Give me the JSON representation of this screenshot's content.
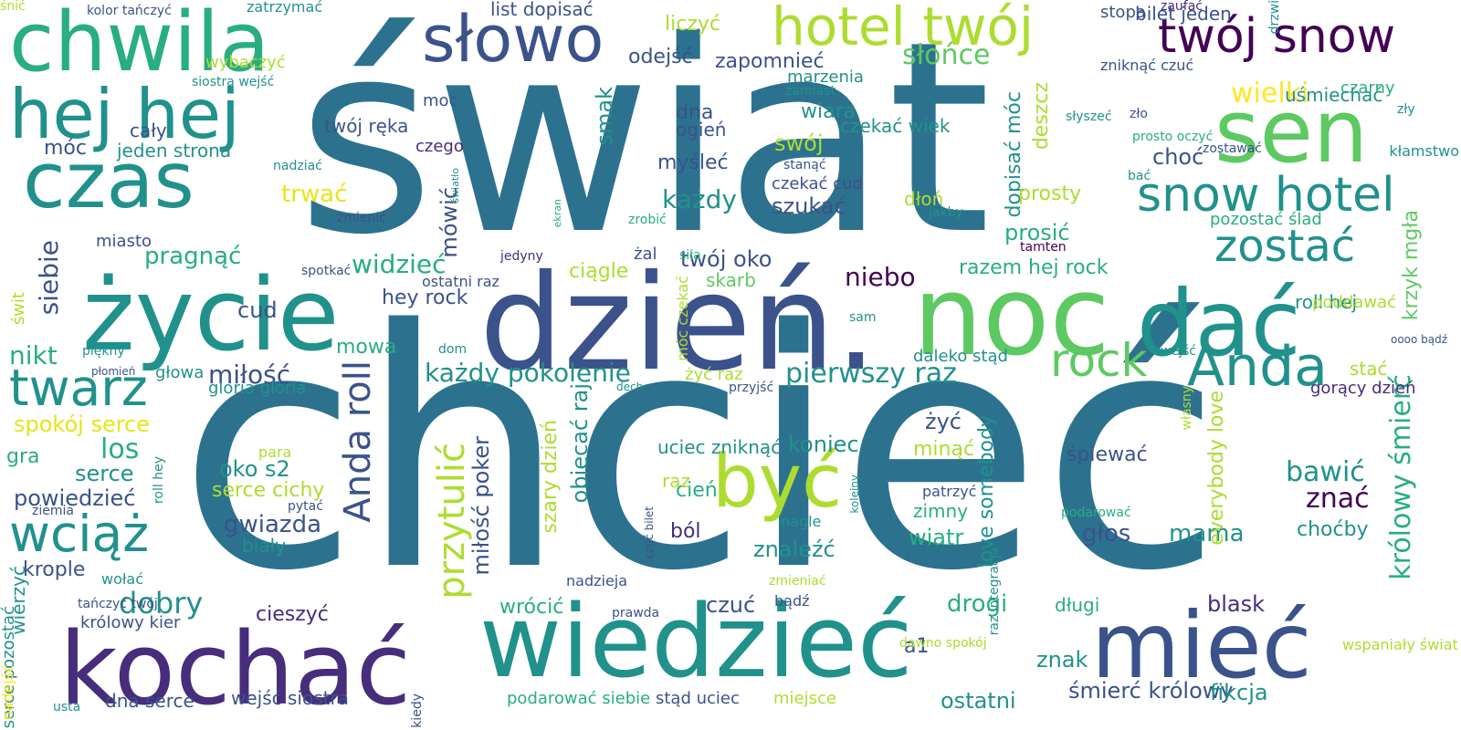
{
  "palette": {
    "deep_purple": "#440154",
    "purple": "#472d7b",
    "indigo": "#3b528b",
    "blue": "#2c728e",
    "teal": "#21918c",
    "sea_green": "#28ae80",
    "green": "#5ec962",
    "lime": "#addc30",
    "yellow": "#fde725",
    "gold": "#e8e419"
  },
  "words": [
    {
      "text": "świat",
      "color": "blue",
      "vertical": false
    },
    {
      "text": "chcieć",
      "color": "blue",
      "vertical": false
    },
    {
      "text": "dzień.",
      "color": "indigo",
      "vertical": false
    },
    {
      "text": "noc",
      "color": "green",
      "vertical": false
    },
    {
      "text": "dać",
      "color": "teal",
      "vertical": false
    },
    {
      "text": "Anda",
      "color": "teal",
      "vertical": false
    },
    {
      "text": "życie",
      "color": "teal",
      "vertical": false
    },
    {
      "text": "kochać",
      "color": "purple",
      "vertical": false
    },
    {
      "text": "wiedzieć",
      "color": "teal",
      "vertical": false
    },
    {
      "text": "mieć",
      "color": "indigo",
      "vertical": false
    },
    {
      "text": "chwila",
      "color": "sea_green",
      "vertical": false
    },
    {
      "text": "czas",
      "color": "teal",
      "vertical": false
    },
    {
      "text": "hej hej",
      "color": "teal",
      "vertical": false
    },
    {
      "text": "sen",
      "color": "green",
      "vertical": false
    },
    {
      "text": "słowo",
      "color": "indigo",
      "vertical": false
    },
    {
      "text": "hotel twój",
      "color": "lime",
      "vertical": false
    },
    {
      "text": "twój snow",
      "color": "deep_purple",
      "vertical": false
    },
    {
      "text": "snow hotel",
      "color": "teal",
      "vertical": false
    },
    {
      "text": "być",
      "color": "lime",
      "vertical": false
    },
    {
      "text": "rock",
      "color": "green",
      "vertical": false
    },
    {
      "text": "twarz",
      "color": "teal",
      "vertical": false
    },
    {
      "text": "wciąż",
      "color": "teal",
      "vertical": false
    },
    {
      "text": "zostać",
      "color": "teal",
      "vertical": false
    },
    {
      "text": "Anda roll",
      "color": "indigo",
      "vertical": true
    },
    {
      "text": "przytulić",
      "color": "lime",
      "vertical": true
    },
    {
      "text": "dobry",
      "color": "teal",
      "vertical": false
    },
    {
      "text": "siebie",
      "color": "indigo",
      "vertical": true
    },
    {
      "text": "wielki",
      "color": "yellow",
      "vertical": false
    },
    {
      "text": "słońce",
      "color": "green",
      "vertical": false
    },
    {
      "text": "pierwszy raz",
      "color": "teal",
      "vertical": false
    },
    {
      "text": "każdy pokolenie",
      "color": "teal",
      "vertical": false
    },
    {
      "text": "niebo",
      "color": "deep_purple",
      "vertical": false
    },
    {
      "text": "każdy",
      "color": "teal",
      "vertical": false
    },
    {
      "text": "widzieć",
      "color": "sea_green",
      "vertical": false
    },
    {
      "text": "gwiazda",
      "color": "indigo",
      "vertical": false
    },
    {
      "text": "los",
      "color": "sea_green",
      "vertical": false
    },
    {
      "text": "miłość",
      "color": "indigo",
      "vertical": false
    },
    {
      "text": "bawić",
      "color": "teal",
      "vertical": false
    },
    {
      "text": "znać",
      "color": "deep_purple",
      "vertical": false
    },
    {
      "text": "mama",
      "color": "teal",
      "vertical": false
    },
    {
      "text": "głos",
      "color": "indigo",
      "vertical": false
    },
    {
      "text": "czuć",
      "color": "indigo",
      "vertical": false
    },
    {
      "text": "drogi",
      "color": "sea_green",
      "vertical": false
    },
    {
      "text": "ostatni",
      "color": "teal",
      "vertical": false
    },
    {
      "text": "śmierć królowy",
      "color": "indigo",
      "vertical": false
    },
    {
      "text": "fikcja",
      "color": "teal",
      "vertical": false
    },
    {
      "text": "blask",
      "color": "purple",
      "vertical": false
    },
    {
      "text": "znak",
      "color": "teal",
      "vertical": false
    },
    {
      "text": "królowy śmierć",
      "color": "sea_green",
      "vertical": true
    },
    {
      "text": "krzyk mgła",
      "color": "green",
      "vertical": true
    },
    {
      "text": "everybody love",
      "color": "lime",
      "vertical": true
    },
    {
      "text": "love somebody",
      "color": "teal",
      "vertical": true
    },
    {
      "text": "miłość poker",
      "color": "indigo",
      "vertical": true
    },
    {
      "text": "obiecać raj",
      "color": "teal",
      "vertical": true
    },
    {
      "text": "szary dzień",
      "color": "lime",
      "vertical": true
    },
    {
      "text": "mówić",
      "color": "indigo",
      "vertical": true
    },
    {
      "text": "smak",
      "color": "teal",
      "vertical": true
    },
    {
      "text": "deszcz",
      "color": "lime",
      "vertical": true
    },
    {
      "text": "dopisać móc",
      "color": "teal",
      "vertical": true
    },
    {
      "text": "nikt",
      "color": "sea_green",
      "vertical": false
    },
    {
      "text": "serce",
      "color": "teal",
      "vertical": false
    },
    {
      "text": "powiedzieć",
      "color": "indigo",
      "vertical": false
    },
    {
      "text": "oko s2",
      "color": "teal",
      "vertical": false
    },
    {
      "text": "serce cichy",
      "color": "lime",
      "vertical": false
    },
    {
      "text": "biały",
      "color": "teal",
      "vertical": false
    },
    {
      "text": "krople",
      "color": "indigo",
      "vertical": false
    },
    {
      "text": "cieszyć",
      "color": "purple",
      "vertical": false
    },
    {
      "text": "a1",
      "color": "indigo",
      "vertical": false
    },
    {
      "text": "znaleźć",
      "color": "teal",
      "vertical": false
    },
    {
      "text": "wiatr",
      "color": "sea_green",
      "vertical": false
    },
    {
      "text": "zimny",
      "color": "sea_green",
      "vertical": false
    },
    {
      "text": "minąć",
      "color": "lime",
      "vertical": false
    },
    {
      "text": "żyć",
      "color": "indigo",
      "vertical": false
    },
    {
      "text": "koniec",
      "color": "teal",
      "vertical": false
    },
    {
      "text": "uciec zniknąć",
      "color": "teal",
      "vertical": false
    },
    {
      "text": "cień",
      "color": "sea_green",
      "vertical": false
    },
    {
      "text": "ból",
      "color": "purple",
      "vertical": false
    },
    {
      "text": "raz",
      "color": "lime",
      "vertical": false
    },
    {
      "text": "twój oko",
      "color": "indigo",
      "vertical": false
    },
    {
      "text": "skarb",
      "color": "green",
      "vertical": false
    },
    {
      "text": "ciągle",
      "color": "lime",
      "vertical": false
    },
    {
      "text": "hey rock",
      "color": "indigo",
      "vertical": false
    },
    {
      "text": "cud",
      "color": "indigo",
      "vertical": false
    },
    {
      "text": "pragnąć",
      "color": "sea_green",
      "vertical": false
    },
    {
      "text": "trwać",
      "color": "gold",
      "vertical": false
    },
    {
      "text": "szukać",
      "color": "indigo",
      "vertical": false
    },
    {
      "text": "myśleć",
      "color": "indigo",
      "vertical": false
    },
    {
      "text": "swój",
      "color": "lime",
      "vertical": false
    },
    {
      "text": "wiara",
      "color": "teal",
      "vertical": false
    },
    {
      "text": "dna",
      "color": "indigo",
      "vertical": false
    },
    {
      "text": "ogień",
      "color": "indigo",
      "vertical": false
    },
    {
      "text": "czekać wiek",
      "color": "teal",
      "vertical": false
    },
    {
      "text": "czekać cud",
      "color": "indigo",
      "vertical": false
    },
    {
      "text": "dłoń",
      "color": "lime",
      "vertical": false
    },
    {
      "text": "prosty",
      "color": "lime",
      "vertical": false
    },
    {
      "text": "prosić",
      "color": "sea_green",
      "vertical": false
    },
    {
      "text": "razem hej rock",
      "color": "sea_green",
      "vertical": false
    },
    {
      "text": "daleko stąd",
      "color": "teal",
      "vertical": false
    },
    {
      "text": "choć",
      "color": "indigo",
      "vertical": false
    },
    {
      "text": "zapomnieć",
      "color": "indigo",
      "vertical": false
    },
    {
      "text": "odejść",
      "color": "indigo",
      "vertical": false
    },
    {
      "text": "liczyć",
      "color": "lime",
      "vertical": false
    },
    {
      "text": "list dopisać",
      "color": "indigo",
      "vertical": false
    },
    {
      "text": "stopa",
      "color": "indigo",
      "vertical": false
    },
    {
      "text": "bilet jeden",
      "color": "indigo",
      "vertical": false
    },
    {
      "text": "uśmiechać",
      "color": "teal",
      "vertical": false
    },
    {
      "text": "czarny",
      "color": "sea_green",
      "vertical": false
    },
    {
      "text": "zniknąć czuć",
      "color": "indigo",
      "vertical": false
    },
    {
      "text": "twój ręka",
      "color": "indigo",
      "vertical": false
    },
    {
      "text": "jeden strona",
      "color": "teal",
      "vertical": false
    },
    {
      "text": "móc",
      "color": "indigo",
      "vertical": false
    },
    {
      "text": "cały",
      "color": "indigo",
      "vertical": false
    },
    {
      "text": "moc",
      "color": "indigo",
      "vertical": false
    },
    {
      "text": "czego",
      "color": "purple",
      "vertical": false
    },
    {
      "text": "marzenia",
      "color": "teal",
      "vertical": false
    },
    {
      "text": "pozostać ślad",
      "color": "sea_green",
      "vertical": false
    },
    {
      "text": "roll hej",
      "color": "teal",
      "vertical": false
    },
    {
      "text": "stać",
      "color": "lime",
      "vertical": false
    },
    {
      "text": "gorący dzień",
      "color": "purple",
      "vertical": false
    },
    {
      "text": "choćby",
      "color": "teal",
      "vertical": false
    },
    {
      "text": "śpiewać",
      "color": "indigo",
      "vertical": false
    },
    {
      "text": "poddawać",
      "color": "lime",
      "vertical": false
    },
    {
      "text": "żyć raz",
      "color": "lime",
      "vertical": false
    },
    {
      "text": "wrócić",
      "color": "sea_green",
      "vertical": false
    },
    {
      "text": "długi",
      "color": "sea_green",
      "vertical": false
    },
    {
      "text": "miejsce",
      "color": "lime",
      "vertical": false
    },
    {
      "text": "stąd uciec",
      "color": "indigo",
      "vertical": false
    },
    {
      "text": "podarować siebie",
      "color": "sea_green",
      "vertical": false
    },
    {
      "text": "dna serce",
      "color": "indigo",
      "vertical": false
    },
    {
      "text": "wejść siostra",
      "color": "indigo",
      "vertical": false
    },
    {
      "text": "królowy kier",
      "color": "indigo",
      "vertical": false
    },
    {
      "text": "wierzyć",
      "color": "teal",
      "vertical": true
    },
    {
      "text": "mowa",
      "color": "sea_green",
      "vertical": false
    },
    {
      "text": "głowa",
      "color": "teal",
      "vertical": false
    },
    {
      "text": "spokój serce",
      "color": "gold",
      "vertical": false
    },
    {
      "text": "gra",
      "color": "sea_green",
      "vertical": false
    },
    {
      "text": "gloria gloria",
      "color": "teal",
      "vertical": false
    },
    {
      "text": "dom",
      "color": "teal",
      "vertical": false
    },
    {
      "text": "ostatni raz",
      "color": "indigo",
      "vertical": false
    },
    {
      "text": "jedyny",
      "color": "purple",
      "vertical": false
    },
    {
      "text": "spotkać",
      "color": "indigo",
      "vertical": false
    },
    {
      "text": "żal",
      "color": "indigo",
      "vertical": false
    },
    {
      "text": "siła",
      "color": "sea_green",
      "vertical": false
    },
    {
      "text": "tamten",
      "color": "deep_purple",
      "vertical": false
    },
    {
      "text": "jakby",
      "color": "teal",
      "vertical": false
    },
    {
      "text": "nadzieja",
      "color": "indigo",
      "vertical": false
    },
    {
      "text": "podarować",
      "color": "sea_green",
      "vertical": false
    },
    {
      "text": "wspaniały świat",
      "color": "lime",
      "vertical": false
    },
    {
      "text": "prawda",
      "color": "indigo",
      "vertical": false
    },
    {
      "text": "zmieniać",
      "color": "lime",
      "vertical": false
    },
    {
      "text": "bądź",
      "color": "indigo",
      "vertical": false
    },
    {
      "text": "dawno spokój",
      "color": "lime",
      "vertical": false
    },
    {
      "text": "nagle",
      "color": "teal",
      "vertical": false
    },
    {
      "text": "patrzyć",
      "color": "indigo",
      "vertical": false
    },
    {
      "text": "przyjść",
      "color": "indigo",
      "vertical": false
    },
    {
      "text": "dech",
      "color": "teal",
      "vertical": false
    },
    {
      "text": "para",
      "color": "lime",
      "vertical": false
    },
    {
      "text": "pytać",
      "color": "indigo",
      "vertical": false
    },
    {
      "text": "ziemia",
      "color": "indigo",
      "vertical": false
    },
    {
      "text": "wołać",
      "color": "teal",
      "vertical": false
    },
    {
      "text": "tańczyć twój",
      "color": "indigo",
      "vertical": false
    },
    {
      "text": "usta",
      "color": "teal",
      "vertical": false
    },
    {
      "text": "piękny",
      "color": "teal",
      "vertical": false
    },
    {
      "text": "płomień",
      "color": "indigo",
      "vertical": false
    },
    {
      "text": "miasto",
      "color": "indigo",
      "vertical": false
    },
    {
      "text": "zmienić",
      "color": "indigo",
      "vertical": false
    },
    {
      "text": "nadziać",
      "color": "teal",
      "vertical": false
    },
    {
      "text": "stanąć",
      "color": "indigo",
      "vertical": false
    },
    {
      "text": "zamiast",
      "color": "teal",
      "vertical": false
    },
    {
      "text": "słyszeć",
      "color": "teal",
      "vertical": false
    },
    {
      "text": "zło",
      "color": "indigo",
      "vertical": false
    },
    {
      "text": "prosto oczyć",
      "color": "sea_green",
      "vertical": false
    },
    {
      "text": "zostawać",
      "color": "indigo",
      "vertical": false
    },
    {
      "text": "bać",
      "color": "teal",
      "vertical": false
    },
    {
      "text": "kłamstwo",
      "color": "teal",
      "vertical": false
    },
    {
      "text": "zły",
      "color": "teal",
      "vertical": false
    },
    {
      "text": "zaufać",
      "color": "purple",
      "vertical": false
    },
    {
      "text": "kolor tańczyć",
      "color": "indigo",
      "vertical": false
    },
    {
      "text": "zatrzymać",
      "color": "teal",
      "vertical": false
    },
    {
      "text": "siostra wejść",
      "color": "teal",
      "vertical": false
    },
    {
      "text": "zrobić",
      "color": "sea_green",
      "vertical": false
    },
    {
      "text": "wejść",
      "color": "teal",
      "vertical": false
    },
    {
      "text": "sam",
      "color": "teal",
      "vertical": false
    },
    {
      "text": "oooo bądź",
      "color": "indigo",
      "vertical": false
    },
    {
      "text": "wybaczyć",
      "color": "lime",
      "vertical": false
    },
    {
      "text": "drzwi",
      "color": "teal",
      "vertical": true
    },
    {
      "text": "świt",
      "color": "lime",
      "vertical": true
    },
    {
      "text": "roll hey",
      "color": "teal",
      "vertical": true
    },
    {
      "text": "serce pozostać",
      "color": "teal",
      "vertical": true
    },
    {
      "text": "kiedy",
      "color": "indigo",
      "vertical": true
    },
    {
      "text": "móc czekać",
      "color": "lime",
      "vertical": true
    },
    {
      "text": "własny",
      "color": "lime",
      "vertical": true
    },
    {
      "text": "raz integracja",
      "color": "teal",
      "vertical": true
    },
    {
      "text": "czuć bilet",
      "color": "indigo",
      "vertical": true
    },
    {
      "text": "kolejny",
      "color": "teal",
      "vertical": true
    },
    {
      "text": "światło",
      "color": "teal",
      "vertical": true
    },
    {
      "text": "ekran",
      "color": "sea_green",
      "vertical": true
    },
    {
      "text": "nadejść",
      "color": "yellow",
      "vertical": true
    },
    {
      "text": "śnić",
      "color": "lime",
      "vertical": false
    }
  ]
}
